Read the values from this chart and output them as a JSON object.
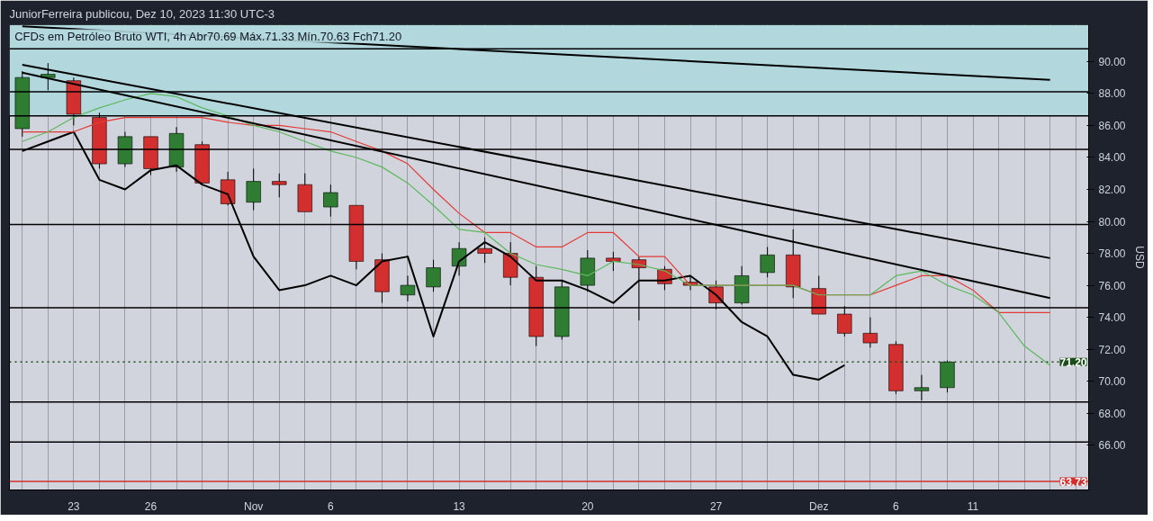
{
  "chart_data": {
    "type": "candlestick",
    "title": "CFDs em Petróleo Bruto WTI, 4h  Abr70.69  Máx.71.33  Mín.70.63  Fch71.20",
    "ylabel": "USD",
    "annotations": [
      "JuniorFerreira publicou, Dez 10, 2023 11:30 UTC-3"
    ],
    "categories": [
      null,
      null,
      "23",
      null,
      null,
      "26",
      null,
      null,
      null,
      "Nov",
      null,
      null,
      "6",
      null,
      null,
      null,
      null,
      "13",
      null,
      null,
      null,
      null,
      "20",
      null,
      null,
      null,
      null,
      "27",
      null,
      null,
      null,
      "Dez",
      null,
      null,
      "6",
      null,
      null,
      "11",
      null,
      null,
      null,
      null
    ],
    "ohlc": [
      [
        85.8,
        89.4,
        85.3,
        89.0
      ],
      [
        89.0,
        89.9,
        88.2,
        89.2
      ],
      [
        88.8,
        89.0,
        86.0,
        86.7
      ],
      [
        86.5,
        86.8,
        83.3,
        83.6
      ],
      [
        83.6,
        85.6,
        83.4,
        85.3
      ],
      [
        85.3,
        85.3,
        82.9,
        83.3
      ],
      [
        83.4,
        85.9,
        83.1,
        85.5
      ],
      [
        84.8,
        85.0,
        82.3,
        82.4
      ],
      [
        82.6,
        83.1,
        81.0,
        81.1
      ],
      [
        81.2,
        83.3,
        80.7,
        82.5
      ],
      [
        82.5,
        83.0,
        81.5,
        82.3
      ],
      [
        82.3,
        83.0,
        80.6,
        80.6
      ],
      [
        80.9,
        82.3,
        80.3,
        81.8
      ],
      [
        81.0,
        81.0,
        77.0,
        77.5
      ],
      [
        77.6,
        78.0,
        74.9,
        75.6
      ],
      [
        75.4,
        76.6,
        75.0,
        76.0
      ],
      [
        75.9,
        77.6,
        75.6,
        77.1
      ],
      [
        77.2,
        78.7,
        76.6,
        78.3
      ],
      [
        78.3,
        79.0,
        77.4,
        78.0
      ],
      [
        78.0,
        78.7,
        76.0,
        76.5
      ],
      [
        76.5,
        77.2,
        72.2,
        72.8
      ],
      [
        72.8,
        76.3,
        72.6,
        75.9
      ],
      [
        76.0,
        78.2,
        75.6,
        77.7
      ],
      [
        77.7,
        78.1,
        76.9,
        77.5
      ],
      [
        77.6,
        77.8,
        73.8,
        77.1
      ],
      [
        77.0,
        77.2,
        75.7,
        76.1
      ],
      [
        76.2,
        76.6,
        75.7,
        76.0
      ],
      [
        75.9,
        76.3,
        74.5,
        74.9
      ],
      [
        74.9,
        77.2,
        74.8,
        76.6
      ],
      [
        76.8,
        78.4,
        76.5,
        77.9
      ],
      [
        77.9,
        79.5,
        75.2,
        75.9
      ],
      [
        75.8,
        76.6,
        74.2,
        74.2
      ],
      [
        74.2,
        74.7,
        72.8,
        73.0
      ],
      [
        73.0,
        74.0,
        72.1,
        72.4
      ],
      [
        72.3,
        72.5,
        69.2,
        69.4
      ],
      [
        69.4,
        70.4,
        68.8,
        69.6
      ],
      [
        69.6,
        71.3,
        69.3,
        71.2
      ],
      null,
      null,
      null,
      null,
      null
    ],
    "colors": [
      "#2e7d32",
      "#2e7d32",
      "#d32f2f",
      "#d32f2f",
      "#2e7d32",
      "#d32f2f",
      "#2e7d32",
      "#d32f2f",
      "#d32f2f",
      "#2e7d32",
      "#d32f2f",
      "#d32f2f",
      "#2e7d32",
      "#d32f2f",
      "#d32f2f",
      "#2e7d32",
      "#2e7d32",
      "#2e7d32",
      "#d32f2f",
      "#d32f2f",
      "#d32f2f",
      "#2e7d32",
      "#2e7d32",
      "#d32f2f",
      "#d32f2f",
      "#d32f2f",
      "#d32f2f",
      "#d32f2f",
      "#2e7d32",
      "#2e7d32",
      "#d32f2f",
      "#d32f2f",
      "#d32f2f",
      "#d32f2f",
      "#d32f2f",
      "#2e7d32",
      "#2e7d32",
      null,
      null,
      null,
      null,
      null
    ],
    "series": [
      {
        "type": "line",
        "color": "#000000",
        "values": [
          84.4,
          85.0,
          85.6,
          82.6,
          82.0,
          83.2,
          83.5,
          82.3,
          81.7,
          77.8,
          75.7,
          76.0,
          76.6,
          76.0,
          77.5,
          77.8,
          72.8,
          77.5,
          78.7,
          77.8,
          76.3,
          76.3,
          75.7,
          74.9,
          76.3,
          76.3,
          76.6,
          75.4,
          73.7,
          72.8,
          70.4,
          70.1,
          71.0,
          null,
          null,
          null,
          null,
          null,
          null,
          null,
          null,
          null
        ]
      },
      {
        "type": "line",
        "color": "#e53935",
        "values": [
          85.6,
          85.6,
          85.6,
          86.2,
          86.5,
          86.5,
          86.5,
          86.5,
          86.2,
          86.0,
          86.0,
          85.8,
          85.6,
          85.0,
          84.4,
          83.6,
          82.0,
          80.5,
          79.3,
          79.3,
          78.4,
          78.4,
          79.3,
          79.3,
          77.8,
          77.8,
          76.0,
          76.0,
          76.0,
          76.0,
          76.0,
          75.4,
          75.4,
          75.4,
          76.0,
          76.6,
          76.6,
          75.7,
          74.3,
          74.3,
          74.3,
          null
        ]
      },
      {
        "type": "line",
        "color": "#5cb85c",
        "values": [
          85.0,
          85.6,
          86.5,
          87.1,
          87.6,
          88.0,
          87.8,
          87.1,
          86.6,
          86.0,
          85.6,
          85.0,
          84.4,
          84.0,
          83.4,
          82.4,
          81.0,
          79.5,
          79.3,
          78.0,
          77.3,
          77.0,
          76.6,
          77.5,
          77.3,
          76.9,
          76.0,
          76.0,
          76.0,
          76.0,
          76.0,
          75.4,
          75.4,
          75.4,
          76.6,
          76.9,
          76.0,
          75.4,
          74.3,
          72.2,
          71.0,
          null
        ]
      },
      {
        "type": "line",
        "color": "#000000",
        "values": [
          92.2,
          null,
          null,
          null,
          null,
          null,
          null,
          null,
          null,
          null,
          null,
          null,
          null,
          null,
          null,
          null,
          null,
          null,
          null,
          null,
          null,
          null,
          null,
          null,
          null,
          null,
          null,
          null,
          null,
          null,
          null,
          null,
          null,
          null,
          null,
          null,
          null,
          null,
          null,
          null,
          88.85,
          null
        ]
      },
      {
        "type": "line",
        "color": "#000000",
        "values": [
          89.8,
          null,
          null,
          null,
          null,
          null,
          null,
          null,
          null,
          null,
          null,
          null,
          null,
          null,
          null,
          null,
          null,
          null,
          null,
          null,
          null,
          null,
          null,
          null,
          null,
          null,
          null,
          null,
          null,
          null,
          null,
          null,
          null,
          null,
          null,
          null,
          null,
          null,
          null,
          null,
          77.7,
          null
        ]
      },
      {
        "type": "line",
        "color": "#000000",
        "values": [
          89.3,
          null,
          null,
          null,
          null,
          null,
          null,
          null,
          null,
          null,
          null,
          null,
          null,
          null,
          null,
          null,
          null,
          null,
          null,
          null,
          null,
          null,
          null,
          null,
          null,
          null,
          null,
          null,
          null,
          null,
          null,
          null,
          null,
          null,
          null,
          null,
          null,
          null,
          null,
          null,
          75.2,
          null
        ]
      }
    ],
    "ylim": [
      63.2,
      92.3
    ],
    "yticks": [
      {
        "value": 66,
        "label": "66.00"
      },
      {
        "value": 68,
        "label": "68.00"
      },
      {
        "value": 70,
        "label": "70.00"
      },
      {
        "value": 72,
        "label": "72.00"
      },
      {
        "value": 74,
        "label": "74.00"
      },
      {
        "value": 76,
        "label": "76.00"
      },
      {
        "value": 78,
        "label": "78.00"
      },
      {
        "value": 80,
        "label": "80.00"
      },
      {
        "value": 82,
        "label": "82.00"
      },
      {
        "value": 84,
        "label": "84.00"
      },
      {
        "value": 86,
        "label": "86.00"
      },
      {
        "value": 88,
        "label": "88.00"
      },
      {
        "value": 90,
        "label": "90.00"
      }
    ],
    "bands": [
      {
        "axis": "y",
        "from": 86.6,
        "to": 92.3,
        "color": "#b2d8de"
      }
    ],
    "ref_lines": [
      {
        "axis": "y",
        "value": 90.8,
        "color": "#000000"
      },
      {
        "axis": "y",
        "value": 88.1,
        "color": "#000000"
      },
      {
        "axis": "y",
        "value": 86.6,
        "color": "#000000"
      },
      {
        "axis": "y",
        "value": 84.5,
        "color": "#000000"
      },
      {
        "axis": "y",
        "value": 79.8,
        "color": "#000000"
      },
      {
        "axis": "y",
        "value": 74.6,
        "color": "#000000"
      },
      {
        "axis": "y",
        "value": 71.2,
        "label": "71.20",
        "color": "#1b4d1b",
        "line_style": "dotted"
      },
      {
        "axis": "y",
        "value": 68.7,
        "color": "#000000"
      },
      {
        "axis": "y",
        "value": 66.2,
        "color": "#000000"
      },
      {
        "axis": "y",
        "value": 63.73,
        "label": "63.73",
        "color": "#d32f2f"
      }
    ],
    "grid": "x"
  }
}
